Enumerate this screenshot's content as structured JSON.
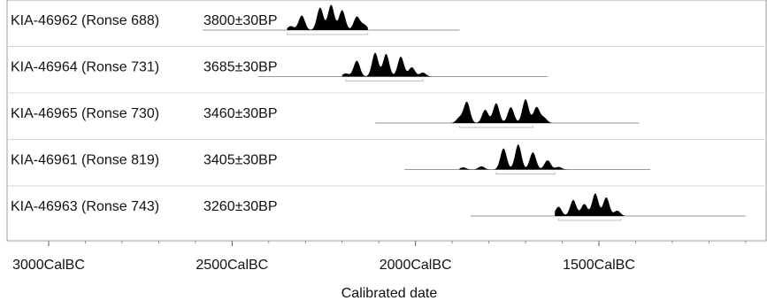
{
  "chart_data": {
    "type": "calibration-plot",
    "xlabel": "Calibrated date",
    "x_unit": "CalBC",
    "xlim": [
      3000,
      1000
    ],
    "ticks": [
      {
        "value": 3000,
        "label": "3000CalBC"
      },
      {
        "value": 2500,
        "label": "2500CalBC"
      },
      {
        "value": 2000,
        "label": "2000CalBC"
      },
      {
        "value": 1500,
        "label": "1500CalBC"
      }
    ],
    "samples": [
      {
        "lab_id": "KIA-46962 (Ronse 688)",
        "bp": "3800±30BP",
        "line": [
          2580,
          1880
        ],
        "range_95": [
          2350,
          2130
        ],
        "peaks": [
          [
            2340,
            0.15
          ],
          [
            2310,
            0.55
          ],
          [
            2260,
            0.85
          ],
          [
            2230,
            0.95
          ],
          [
            2200,
            0.75
          ],
          [
            2160,
            0.5
          ],
          [
            2140,
            0.2
          ]
        ],
        "density_span": [
          2350,
          2130
        ]
      },
      {
        "lab_id": "KIA-46964 (Ronse 731)",
        "bp": "3685±30BP",
        "line": [
          2430,
          1640
        ],
        "range_95": [
          2190,
          1980
        ],
        "peaks": [
          [
            2190,
            0.12
          ],
          [
            2160,
            0.6
          ],
          [
            2110,
            0.9
          ],
          [
            2080,
            0.85
          ],
          [
            2040,
            0.75
          ],
          [
            2010,
            0.35
          ],
          [
            1980,
            0.15
          ]
        ],
        "density_span": [
          2200,
          1940
        ]
      },
      {
        "lab_id": "KIA-46965 (Ronse 730)",
        "bp": "3460±30BP",
        "line": [
          2110,
          1390
        ],
        "range_95": [
          1880,
          1680
        ],
        "peaks": [
          [
            1880,
            0.2
          ],
          [
            1860,
            0.8
          ],
          [
            1810,
            0.5
          ],
          [
            1780,
            0.75
          ],
          [
            1740,
            0.6
          ],
          [
            1700,
            0.9
          ],
          [
            1670,
            0.6
          ],
          [
            1650,
            0.2
          ]
        ],
        "density_span": [
          1920,
          1590
        ]
      },
      {
        "lab_id": "KIA-46961 (Ronse 819)",
        "bp": "3405±30BP",
        "line": [
          2030,
          1360
        ],
        "range_95": [
          1780,
          1620
        ],
        "peaks": [
          [
            1870,
            0.08
          ],
          [
            1820,
            0.12
          ],
          [
            1760,
            0.8
          ],
          [
            1720,
            0.95
          ],
          [
            1680,
            0.65
          ],
          [
            1640,
            0.35
          ],
          [
            1610,
            0.1
          ]
        ],
        "density_span": [
          1880,
          1560
        ]
      },
      {
        "lab_id": "KIA-46963 (Ronse 743)",
        "bp": "3260±30BP",
        "line": [
          1850,
          1100
        ],
        "range_95": [
          1610,
          1440
        ],
        "peaks": [
          [
            1610,
            0.35
          ],
          [
            1570,
            0.6
          ],
          [
            1540,
            0.45
          ],
          [
            1510,
            0.85
          ],
          [
            1480,
            0.7
          ],
          [
            1450,
            0.2
          ]
        ],
        "density_span": [
          1620,
          1420
        ]
      }
    ]
  }
}
